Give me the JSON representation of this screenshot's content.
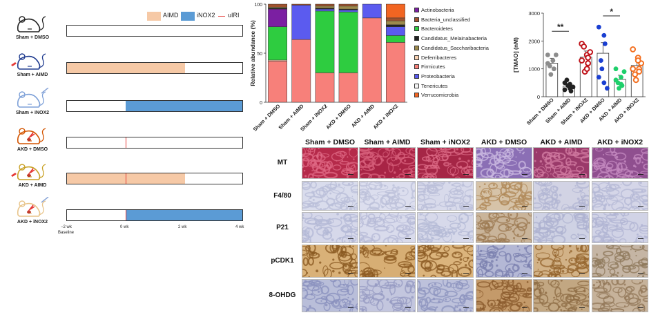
{
  "timeline": {
    "legend": {
      "aimd": "AIMD",
      "inox2": "iNOX2",
      "uiri": "uIRI"
    },
    "colors": {
      "aimd": "#f6c9a6",
      "inox2": "#5b9bd5",
      "uiri": "#e53935"
    },
    "groups": [
      {
        "label": "Sham + DMSO",
        "aimd": false,
        "inox2": false,
        "uiri": false,
        "mouse_color": "#222222"
      },
      {
        "label": "Sham + AIMD",
        "aimd": true,
        "inox2": false,
        "uiri": false,
        "mouse_color": "#1f3b8f"
      },
      {
        "label": "Sham + iNOX2",
        "aimd": false,
        "inox2": true,
        "uiri": false,
        "mouse_color": "#7da0d8"
      },
      {
        "label": "AKD + DMSO",
        "aimd": false,
        "inox2": false,
        "uiri": true,
        "mouse_color": "#d35400"
      },
      {
        "label": "AKD + AIMD",
        "aimd": true,
        "inox2": false,
        "uiri": true,
        "mouse_color": "#c9a227"
      },
      {
        "label": "AKD + iNOX2",
        "aimd": false,
        "inox2": true,
        "uiri": true,
        "mouse_color": "#e8c48a"
      }
    ],
    "ticks": [
      "−2 wk",
      "0 wk",
      "2 wk",
      "4 wk"
    ],
    "baseline": "Baseline"
  },
  "chart_data": [
    {
      "type": "bar",
      "stacked": true,
      "title": "",
      "ylabel": "Relative abundance (%)",
      "ylim": [
        0,
        100
      ],
      "yticks": [
        0,
        50,
        100
      ],
      "categories": [
        "Sham + DMSO",
        "Sham + AIMD",
        "Sham + iNOX2",
        "AKD + DMSO",
        "AKD + AIMD",
        "AKD + iNOX2"
      ],
      "series": [
        {
          "name": "Tenericutes",
          "color": "#f5f5f5",
          "values": [
            0,
            0,
            0,
            0,
            0,
            0
          ]
        },
        {
          "name": "Firmicutes",
          "color": "#f7807a",
          "values": [
            42,
            64,
            30,
            30,
            86,
            61
          ]
        },
        {
          "name": "Deferribacteres",
          "color": "#f9d2b2",
          "values": [
            1,
            0,
            0,
            0,
            0,
            0
          ]
        },
        {
          "name": "Bacteroidetes",
          "color": "#2ecc40",
          "values": [
            34,
            0,
            63,
            62,
            0,
            7
          ]
        },
        {
          "name": "Proteobacteria",
          "color": "#5b5bef",
          "values": [
            0,
            35,
            2,
            2,
            14,
            9
          ]
        },
        {
          "name": "Actinobacteria",
          "color": "#7b1fa2",
          "values": [
            18,
            0,
            0,
            0,
            0,
            0
          ]
        },
        {
          "name": "Candidatus_Melainabacteria",
          "color": "#222222",
          "values": [
            1,
            0,
            1,
            1,
            0,
            2
          ]
        },
        {
          "name": "Candidatus_Saccharibacteria",
          "color": "#9c8a4c",
          "values": [
            1,
            0,
            2,
            3,
            0,
            4
          ]
        },
        {
          "name": "Bacteria_unclassified",
          "color": "#a0522d",
          "values": [
            3,
            1,
            2,
            2,
            0,
            3
          ]
        },
        {
          "name": "Verrucomicrobia",
          "color": "#f26522",
          "values": [
            0,
            0,
            0,
            0,
            0,
            14
          ]
        }
      ],
      "legend": [
        {
          "name": "Actinobacteria",
          "color": "#7b1fa2"
        },
        {
          "name": "Bacteria_unclassified",
          "color": "#a0522d"
        },
        {
          "name": "Bacteroidetes",
          "color": "#2ecc40"
        },
        {
          "name": "Candidatus_Melainabacteria",
          "color": "#222222"
        },
        {
          "name": "Candidatus_Saccharibacteria",
          "color": "#9c8a4c"
        },
        {
          "name": "Deferribacteres",
          "color": "#f9d2b2"
        },
        {
          "name": "Firmicutes",
          "color": "#f7807a"
        },
        {
          "name": "Proteobacteria",
          "color": "#5b5bef"
        },
        {
          "name": "Tenericutes",
          "color": "#f5f5f5"
        },
        {
          "name": "Verrucomicrobia",
          "color": "#f26522"
        }
      ]
    },
    {
      "type": "bar",
      "ylabel": "[TMAO] (nM)",
      "ylim": [
        0,
        3000
      ],
      "yticks": [
        0,
        1000,
        2000,
        3000
      ],
      "categories": [
        "Sham + DMSO",
        "Sham + AIMD",
        "Sham + iNOX2",
        "AKD + DMSO",
        "AKD + AIMD",
        "AKD + iNOX2"
      ],
      "values": [
        1200,
        380,
        1420,
        1560,
        620,
        1120
      ],
      "errors": [
        180,
        90,
        220,
        380,
        150,
        210
      ],
      "colors": [
        "#8c8c8c",
        "#222222",
        "#c0141b",
        "#1a3fd1",
        "#1fcf6b",
        "#f37021"
      ],
      "points": [
        [
          1500,
          1300,
          1000,
          1100,
          800,
          1500,
          1200
        ],
        [
          500,
          300,
          200,
          600,
          400,
          350,
          250,
          450
        ],
        [
          1900,
          1500,
          1200,
          1800,
          900,
          1600,
          1300,
          1000,
          1400
        ],
        [
          2500,
          2200,
          1900,
          1300,
          1000,
          300,
          700,
          500
        ],
        [
          1000,
          700,
          400,
          500,
          300,
          900,
          600,
          450
        ],
        [
          1700,
          1400,
          1000,
          800,
          600,
          1200,
          1000,
          1300,
          900
        ]
      ],
      "significance": [
        {
          "from": "Sham + DMSO",
          "to": "Sham + AIMD",
          "label": "**"
        },
        {
          "from": "AKD + DMSO",
          "to": "AKD + AIMD",
          "label": "*"
        }
      ]
    }
  ],
  "histology": {
    "columns": [
      "Sham + DMSO",
      "Sham + AIMD",
      "Sham + iNOX2",
      "AKD + DMSO",
      "AKD + AIMD",
      "AKD + iNOX2"
    ],
    "rows": [
      {
        "label": "MT",
        "colors": [
          "#b52a4a",
          "#a82445",
          "#a52646",
          "#8b6fb5",
          "#9a3a6a",
          "#8f4f8f"
        ],
        "accent": [
          "#e06a86",
          "#d8607c",
          "#dc6a86",
          "#c9b8e0",
          "#d07aa0",
          "#c48ac0"
        ]
      },
      {
        "label": "F4/80",
        "colors": [
          "#d9dcec",
          "#dcdeee",
          "#d8daeb",
          "#d6c3a8",
          "#d2d3e4",
          "#d5d6e8"
        ],
        "accent": [
          "#b8bdd8",
          "#bcc0da",
          "#b9bdd8",
          "#b08a5a",
          "#b1b5d3",
          "#b4b8d6"
        ]
      },
      {
        "label": "P21",
        "colors": [
          "#d6d8ea",
          "#d9dbec",
          "#d7d9ea",
          "#c9b49a",
          "#cfd2e4",
          "#d1d3e6"
        ],
        "accent": [
          "#b3b8d5",
          "#b6bad7",
          "#b4b9d6",
          "#9c7a52",
          "#adb1d0",
          "#b0b4d3"
        ]
      },
      {
        "label": "pCDK1",
        "colors": [
          "#d9b178",
          "#d7ae74",
          "#dbb47c",
          "#b4b8d5",
          "#d2b287",
          "#c5b5a4"
        ],
        "accent": [
          "#8a5a22",
          "#8e5c24",
          "#8c5c26",
          "#7a7fae",
          "#94642e",
          "#8f7a5c"
        ]
      },
      {
        "label": "8-OHDG",
        "colors": [
          "#b9bed9",
          "#c3c6de",
          "#bdc1db",
          "#c49a6a",
          "#c2a782",
          "#c6b29a"
        ],
        "accent": [
          "#8a90bd",
          "#959ac2",
          "#8e94bf",
          "#8a5a2c",
          "#8e6c44",
          "#93785a"
        ]
      }
    ]
  }
}
